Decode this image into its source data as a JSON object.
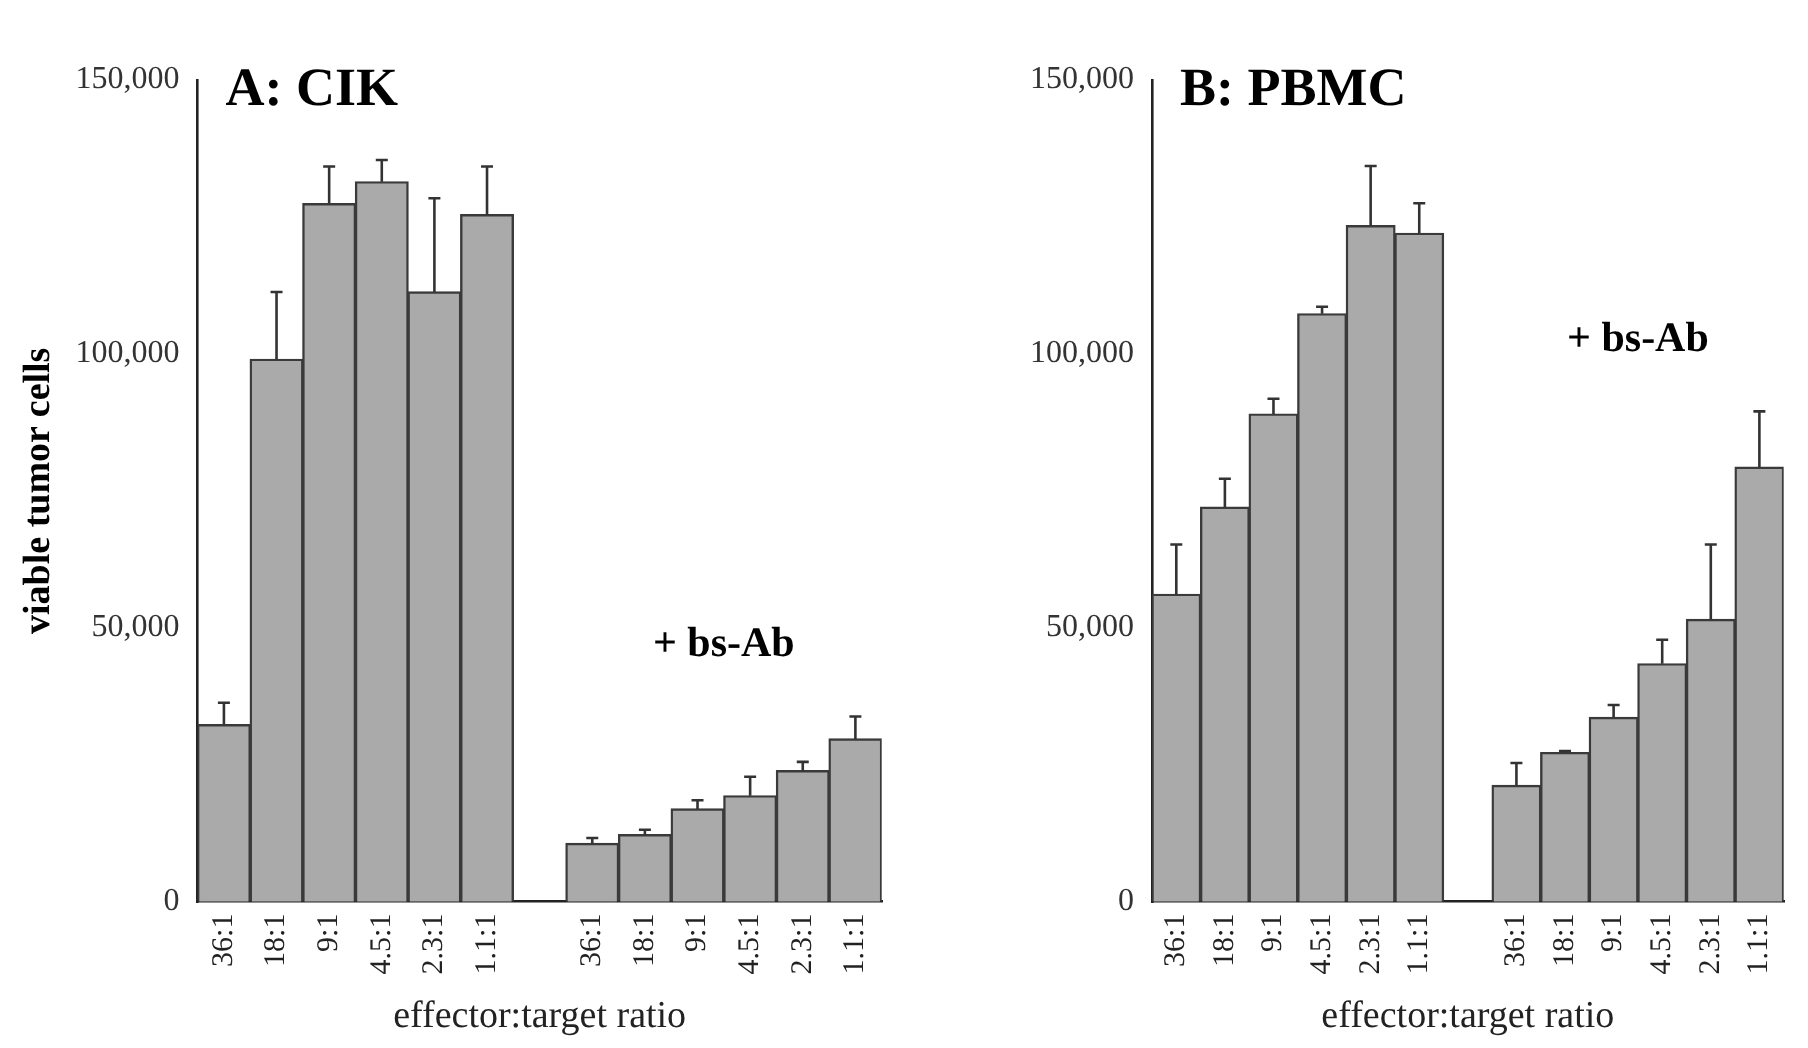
{
  "chart_data": [
    {
      "type": "bar",
      "title": "A: CIK",
      "ylabel": "viable tumor cells",
      "xlabel": "effector:target ratio",
      "annotations": [
        "+ bs-Ab"
      ],
      "legend": false,
      "grid": false,
      "categories": [
        "36:1",
        "18:1",
        "9:1",
        "4.5:1",
        "2.3:1",
        "1.1:1",
        null,
        "36:1",
        "18:1",
        "9:1",
        "4.5:1",
        "2.3:1",
        "1.1:1"
      ],
      "series": [
        {
          "color": "#aaaaaa",
          "values": [
            32300,
            99000,
            127400,
            131400,
            111300,
            125400,
            null,
            10600,
            12200,
            16900,
            19300,
            23900,
            29700
          ],
          "errors": [
            [
              32300,
              36300
            ],
            [
              99000,
              111300
            ],
            [
              127400,
              134200
            ],
            [
              131400,
              135400
            ],
            [
              111300,
              128400
            ],
            [
              125400,
              134200
            ],
            null,
            [
              10600,
              11600
            ],
            [
              12200,
              13100
            ],
            [
              16900,
              18500
            ],
            [
              19300,
              22800
            ],
            [
              23900,
              25500
            ],
            [
              29700,
              33800
            ]
          ]
        }
      ],
      "ylim": [
        0,
        150000
      ],
      "yticks": [
        {
          "value": 0,
          "label": "0"
        },
        {
          "value": 50000,
          "label": "50,000"
        },
        {
          "value": 100000,
          "label": "100,000"
        },
        {
          "value": 150000,
          "label": "150,000"
        }
      ]
    },
    {
      "type": "bar",
      "title": "B: PBMC",
      "xlabel": "effector:target ratio",
      "annotations": [
        "+ bs-Ab"
      ],
      "legend": false,
      "grid": false,
      "categories": [
        "36:1",
        "18:1",
        "9:1",
        "4.5:1",
        "2.3:1",
        "1.1:1",
        null,
        "36:1",
        "18:1",
        "9:1",
        "4.5:1",
        "2.3:1",
        "1.1:1"
      ],
      "series": [
        {
          "color": "#aaaaaa",
          "values": [
            56100,
            72000,
            89000,
            107300,
            123400,
            122000,
            null,
            21200,
            27200,
            33600,
            43400,
            51500,
            79300
          ],
          "errors": [
            [
              56100,
              65200
            ],
            [
              72000,
              77200
            ],
            [
              89000,
              91800
            ],
            [
              107300,
              108600
            ],
            [
              123400,
              134300
            ],
            [
              122000,
              127500
            ],
            null,
            [
              21200,
              25300
            ],
            [
              27200,
              27500
            ],
            [
              33600,
              35900
            ],
            [
              43400,
              47800
            ],
            [
              51500,
              65200
            ],
            [
              79300,
              89500
            ]
          ]
        }
      ],
      "ylim": [
        0,
        150000
      ],
      "yticks": [
        {
          "value": 0,
          "label": "0"
        },
        {
          "value": 50000,
          "label": "50,000"
        },
        {
          "value": 100000,
          "label": "100,000"
        },
        {
          "value": 150000,
          "label": "150,000"
        }
      ]
    }
  ]
}
